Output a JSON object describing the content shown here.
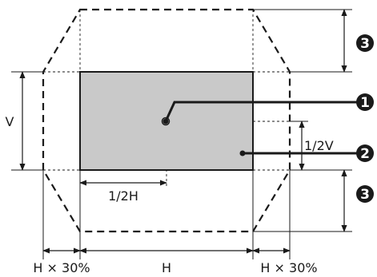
{
  "labels": {
    "v": "V",
    "h": "H",
    "half_h": "1/2H",
    "half_v": "1/2V",
    "h30_left": "H × 30%",
    "h30_right": "H × 30%"
  },
  "callouts": {
    "one": "1",
    "two": "2",
    "three_top": "3",
    "three_bottom": "3"
  },
  "colors": {
    "image_fill": "#c9c9c9",
    "line": "#1a1a1a",
    "badge": "#1a1a1a"
  }
}
